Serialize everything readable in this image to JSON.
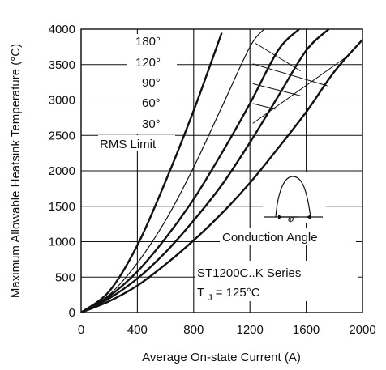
{
  "chart_data": {
    "type": "line",
    "title": "",
    "xlabel": "Average On-state Current (A)",
    "ylabel": "Maximum Allowable Heatsink Temperature (°C)",
    "xlim": [
      0,
      2000
    ],
    "ylim": [
      0,
      4000
    ],
    "x_ticks": [
      "0",
      "400",
      "800",
      "1200",
      "1600",
      "2000"
    ],
    "y_ticks": [
      "0",
      "500",
      "1000",
      "1500",
      "2000",
      "2500",
      "3000",
      "3500",
      "4000"
    ],
    "grid": true,
    "series": [
      {
        "name": "30°",
        "x": [
          0,
          200,
          400,
          600,
          800,
          1000
        ],
        "y": [
          0,
          300,
          950,
          1850,
          2850,
          3950
        ],
        "width": 2.4
      },
      {
        "name": "60°",
        "x": [
          0,
          200,
          400,
          600,
          800,
          1000,
          1200,
          1300
        ],
        "y": [
          0,
          250,
          700,
          1300,
          2050,
          2900,
          3750,
          4000
        ],
        "width": 1.2
      },
      {
        "name": "90°",
        "x": [
          0,
          200,
          400,
          600,
          800,
          1000,
          1200,
          1400,
          1550
        ],
        "y": [
          0,
          230,
          580,
          1050,
          1600,
          2250,
          2950,
          3700,
          4000
        ],
        "width": 2.4
      },
      {
        "name": "120°",
        "x": [
          0,
          200,
          400,
          600,
          800,
          1000,
          1200,
          1400,
          1600,
          1760
        ],
        "y": [
          0,
          200,
          480,
          850,
          1300,
          1800,
          2400,
          3050,
          3700,
          4000
        ],
        "width": 2.4
      },
      {
        "name": "180°",
        "x": [
          0,
          200,
          400,
          600,
          800,
          1000,
          1200,
          1400,
          1600,
          1800,
          2000
        ],
        "y": [
          0,
          160,
          380,
          680,
          1020,
          1400,
          1830,
          2320,
          2830,
          3400,
          3850
        ],
        "width": 2.4
      }
    ],
    "leaders": [
      {
        "label": "180°",
        "from": [
          1240,
          3800
        ],
        "to": [
          1560,
          3410
        ]
      },
      {
        "label": "120°",
        "from": [
          1220,
          3510
        ],
        "to": [
          1750,
          3200
        ]
      },
      {
        "label": "90°",
        "from": [
          1220,
          3230
        ],
        "to": [
          1560,
          3060
        ]
      },
      {
        "label": "60°",
        "from": [
          1220,
          2950
        ],
        "to": [
          1380,
          2870
        ]
      },
      {
        "label": "30°",
        "from": [
          1220,
          2670
        ],
        "to": [
          1880,
          3600
        ]
      }
    ],
    "annotations": {
      "rms_limit": "RMS Limit",
      "conduction_angle": "Conduction Angle",
      "series_name": "ST1200C..K Series",
      "tj_prefix": "T",
      "tj_sub": "J",
      "tj_value": " = 125°C",
      "phi": "φ"
    },
    "colors": {
      "line": "#111111",
      "grid": "#111111",
      "background": "#ffffff"
    }
  }
}
